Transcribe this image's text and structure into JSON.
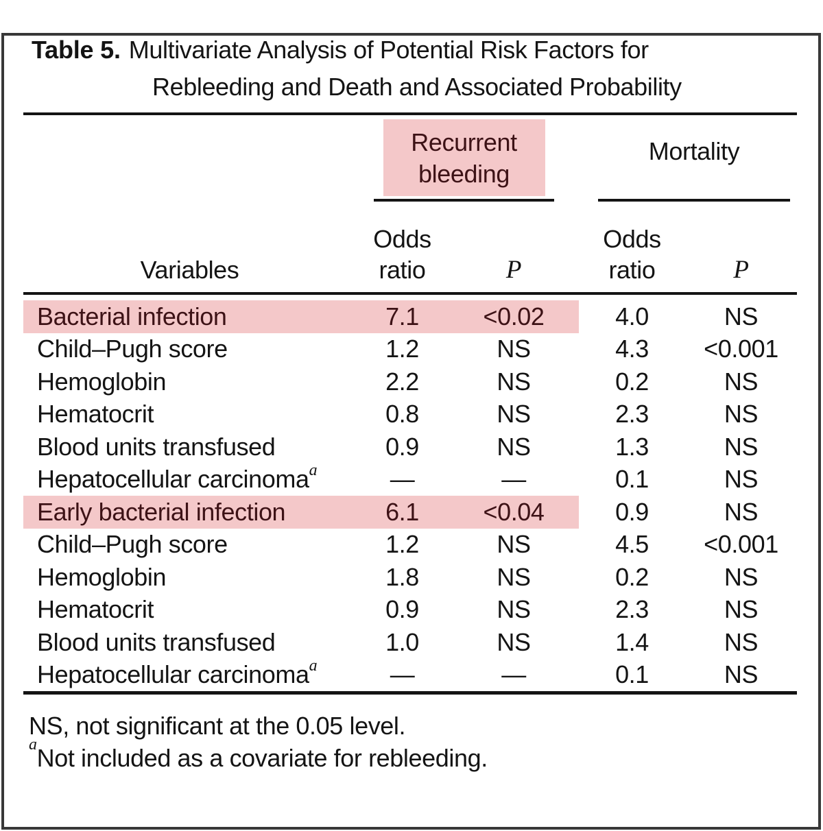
{
  "title": {
    "label": "Table 5.",
    "line1": "Multivariate Analysis of Potential Risk Factors for",
    "line2": "Rebleeding and Death and Associated Probability"
  },
  "table": {
    "group1_label": "Recurrent bleeding",
    "group2_label": "Mortality",
    "variables_label": "Variables",
    "odds_ratio_label": "Odds ratio",
    "p_label": "P",
    "rows": [
      {
        "variable": "Bacterial infection",
        "sup": "",
        "rebleed_or": "7.1",
        "rebleed_p": "<0.02",
        "mort_or": "4.0",
        "mort_p": "NS",
        "highlight": true
      },
      {
        "variable": "Child–Pugh score",
        "sup": "",
        "rebleed_or": "1.2",
        "rebleed_p": "NS",
        "mort_or": "4.3",
        "mort_p": "<0.001",
        "highlight": false
      },
      {
        "variable": "Hemoglobin",
        "sup": "",
        "rebleed_or": "2.2",
        "rebleed_p": "NS",
        "mort_or": "0.2",
        "mort_p": "NS",
        "highlight": false
      },
      {
        "variable": "Hematocrit",
        "sup": "",
        "rebleed_or": "0.8",
        "rebleed_p": "NS",
        "mort_or": "2.3",
        "mort_p": "NS",
        "highlight": false
      },
      {
        "variable": "Blood units transfused",
        "sup": "",
        "rebleed_or": "0.9",
        "rebleed_p": "NS",
        "mort_or": "1.3",
        "mort_p": "NS",
        "highlight": false
      },
      {
        "variable": "Hepatocellular carcinoma",
        "sup": "a",
        "rebleed_or": "—",
        "rebleed_p": "—",
        "mort_or": "0.1",
        "mort_p": "NS",
        "highlight": false
      },
      {
        "variable": "Early bacterial infection",
        "sup": "",
        "rebleed_or": "6.1",
        "rebleed_p": "<0.04",
        "mort_or": "0.9",
        "mort_p": "NS",
        "highlight": true
      },
      {
        "variable": "Child–Pugh score",
        "sup": "",
        "rebleed_or": "1.2",
        "rebleed_p": "NS",
        "mort_or": "4.5",
        "mort_p": "<0.001",
        "highlight": false
      },
      {
        "variable": "Hemoglobin",
        "sup": "",
        "rebleed_or": "1.8",
        "rebleed_p": "NS",
        "mort_or": "0.2",
        "mort_p": "NS",
        "highlight": false
      },
      {
        "variable": "Hematocrit",
        "sup": "",
        "rebleed_or": "0.9",
        "rebleed_p": "NS",
        "mort_or": "2.3",
        "mort_p": "NS",
        "highlight": false
      },
      {
        "variable": "Blood units transfused",
        "sup": "",
        "rebleed_or": "1.0",
        "rebleed_p": "NS",
        "mort_or": "1.4",
        "mort_p": "NS",
        "highlight": false
      },
      {
        "variable": "Hepatocellular carcinoma",
        "sup": "a",
        "rebleed_or": "—",
        "rebleed_p": "—",
        "mort_or": "0.1",
        "mort_p": "NS",
        "highlight": false
      }
    ]
  },
  "footnotes": [
    {
      "sup": "",
      "text": "NS, not significant at the 0.05 level."
    },
    {
      "sup": "a",
      "text": "Not included as a covariate for rebleeding."
    }
  ],
  "colors": {
    "highlight_pink": "#f4c8c9",
    "highlight_text_ink": "#3d1216",
    "text_ink": "#141414",
    "frame": "#383838"
  }
}
